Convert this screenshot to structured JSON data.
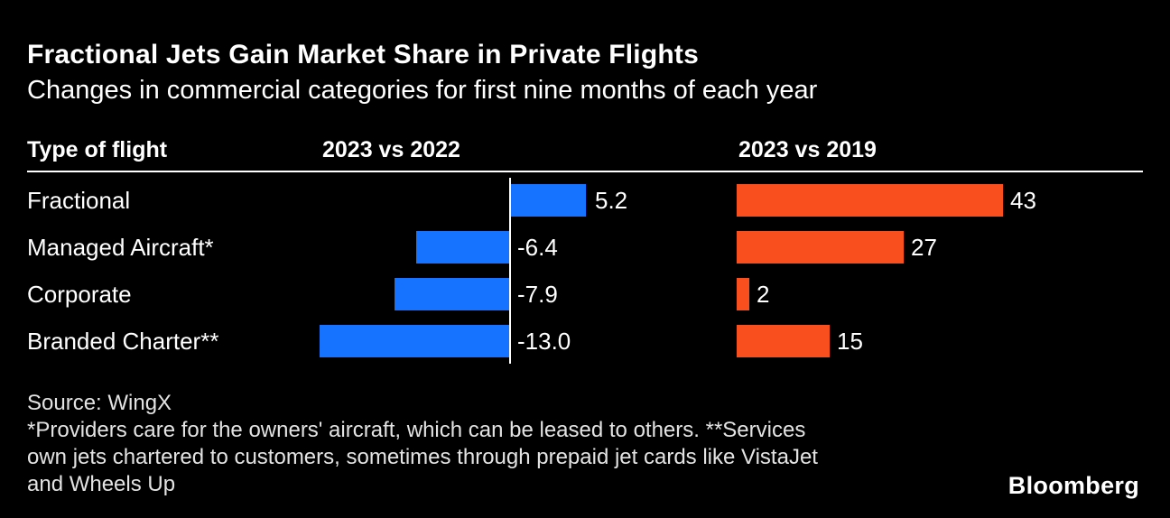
{
  "header": {
    "title": "Fractional Jets Gain Market Share in Private Flights",
    "subtitle": "Changes in commercial categories for first nine months of each year"
  },
  "columns": {
    "flight_type": "Type of flight",
    "col1": "2023 vs 2022",
    "col2": "2023 vs 2019"
  },
  "chart_data": {
    "type": "bar",
    "orientation": "horizontal",
    "title": "Fractional Jets Gain Market Share in Private Flights",
    "subtitle": "Changes in commercial categories for first nine months of each year",
    "categories": [
      "Fractional",
      "Managed Aircraft*",
      "Corporate",
      "Branded Charter**"
    ],
    "series": [
      {
        "name": "2023 vs 2022",
        "color": "#1673ff",
        "values": [
          5.2,
          -6.4,
          -7.9,
          -13.0
        ],
        "labels": [
          "5.2",
          "-6.4",
          "-7.9",
          "-13.0"
        ],
        "axis_range": [
          -13.0,
          5.2
        ],
        "zero_line": true
      },
      {
        "name": "2023 vs 2019",
        "color": "#f94e1d",
        "values": [
          43,
          27,
          2,
          15
        ],
        "labels": [
          "43",
          "27",
          "2",
          "15"
        ],
        "axis_range": [
          0,
          43
        ],
        "zero_line": false
      }
    ],
    "grid": false,
    "legend_position": "none",
    "value_labels": true
  },
  "footer": {
    "source": "Source: WingX",
    "note_lines": [
      "*Providers care for the owners' aircraft, which can be leased to others. **Services",
      "own jets chartered to customers, sometimes through prepaid jet cards like VistaJet",
      "and Wheels Up"
    ],
    "brand": "Bloomberg"
  },
  "colors": {
    "background": "#000000",
    "text": "#ffffff",
    "muted_text": "#e3e3e3",
    "blue": "#1673ff",
    "orange": "#f94e1d",
    "divider": "#ffffff"
  }
}
